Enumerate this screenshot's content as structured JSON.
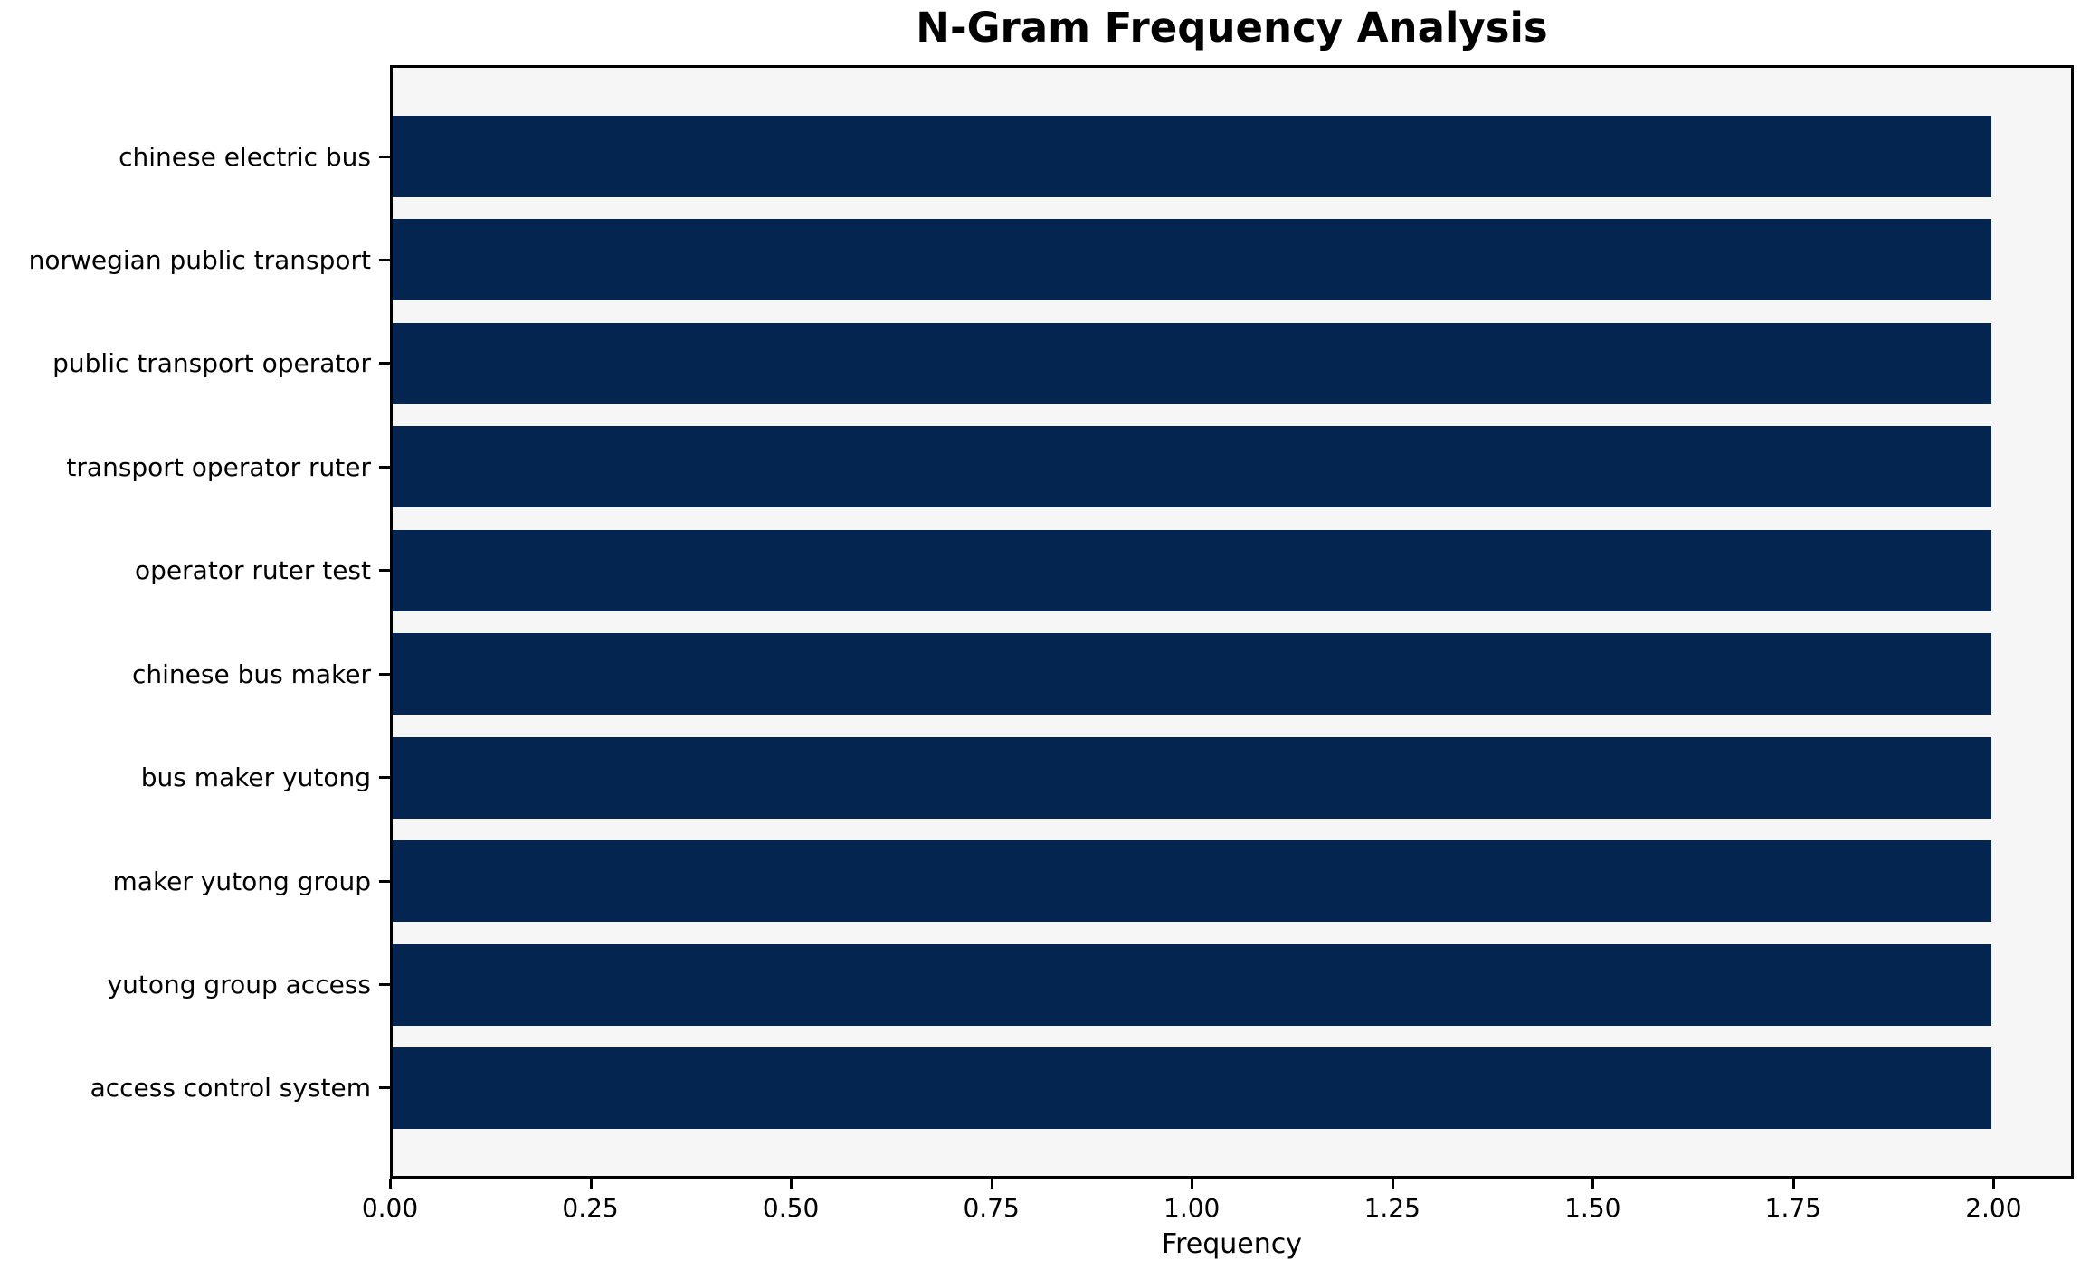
{
  "chart_data": {
    "type": "bar",
    "orientation": "horizontal",
    "title": "N-Gram Frequency Analysis",
    "xlabel": "Frequency",
    "ylabel": "",
    "categories": [
      "chinese electric bus",
      "norwegian public transport",
      "public transport operator",
      "transport operator ruter",
      "operator ruter test",
      "chinese bus maker",
      "bus maker yutong",
      "maker yutong group",
      "yutong group access",
      "access control system"
    ],
    "values": [
      2.0,
      2.0,
      2.0,
      2.0,
      2.0,
      2.0,
      2.0,
      2.0,
      2.0,
      2.0
    ],
    "xlim": [
      0.0,
      2.1
    ],
    "x_tick_values": [
      0.0,
      0.25,
      0.5,
      0.75,
      1.0,
      1.25,
      1.5,
      1.75,
      2.0
    ],
    "x_tick_labels": [
      "0.00",
      "0.25",
      "0.50",
      "0.75",
      "1.00",
      "1.25",
      "1.50",
      "1.75",
      "2.00"
    ],
    "grid": false,
    "legend": false,
    "colors": {
      "bar": "#03254f",
      "plot_background": "#f6f6f7",
      "figure_background": "#ffffff",
      "spine": "#000000",
      "text": "#000000"
    }
  }
}
